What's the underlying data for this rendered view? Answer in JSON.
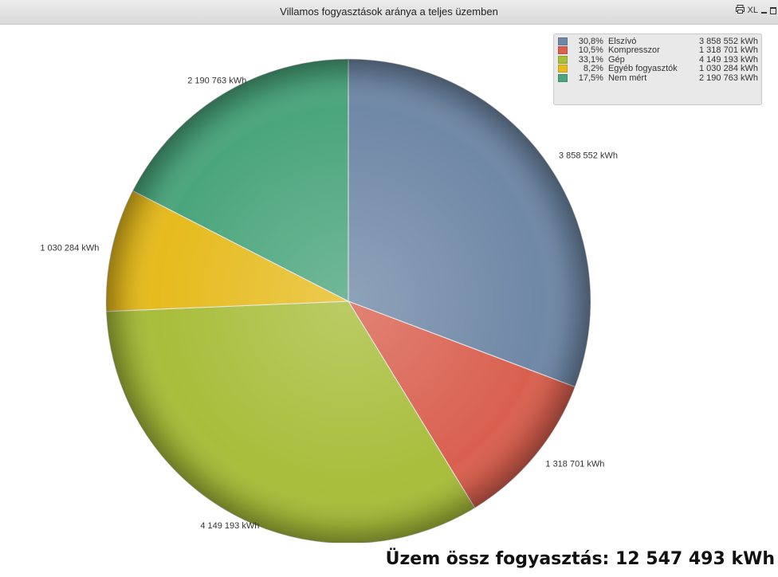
{
  "window": {
    "title": "Villamos fogyasztások aránya a teljes üzemben",
    "ctrl_xl": "XL"
  },
  "chart_data": {
    "type": "pie",
    "unit": "kWh",
    "slices": [
      {
        "name": "Elszívó",
        "percent": "30,8%",
        "value": 3858552,
        "value_label": "3 858 552 kWh",
        "color": "#6f88a6"
      },
      {
        "name": "Kompresszor",
        "percent": "10,5%",
        "value": 1318701,
        "value_label": "1 318 701 kWh",
        "color": "#d9604f"
      },
      {
        "name": "Gép",
        "percent": "33,1%",
        "value": 4149193,
        "value_label": "4 149 193 kWh",
        "color": "#a8bd3a"
      },
      {
        "name": "Egyéb fogyasztók",
        "percent": "8,2%",
        "value": 1030284,
        "value_label": "1 030 284 kWh",
        "color": "#e6bb1e"
      },
      {
        "name": "Nem mért",
        "percent": "17,5%",
        "value": 2190763,
        "value_label": "2 190 763 kWh",
        "color": "#4aa57c"
      }
    ],
    "legend_position": "top-right"
  },
  "total_text": "Üzem össz fogyasztás: 12 547 493 kWh"
}
